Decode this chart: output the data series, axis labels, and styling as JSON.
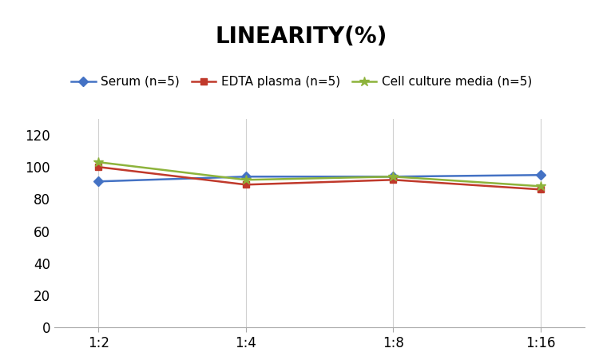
{
  "title": "LINEARITY(%)",
  "title_fontsize": 20,
  "title_fontweight": "bold",
  "x_labels": [
    "1:2",
    "1:4",
    "1:8",
    "1:16"
  ],
  "x_positions": [
    0,
    1,
    2,
    3
  ],
  "series": [
    {
      "label": "Serum (n=5)",
      "values": [
        91,
        94,
        94,
        95
      ],
      "color": "#4472C4",
      "marker": "D",
      "markersize": 6,
      "linewidth": 1.8
    },
    {
      "label": "EDTA plasma (n=5)",
      "values": [
        100,
        89,
        92,
        86
      ],
      "color": "#C0392B",
      "marker": "s",
      "markersize": 6,
      "linewidth": 1.8
    },
    {
      "label": "Cell culture media (n=5)",
      "values": [
        103,
        92,
        94,
        88
      ],
      "color": "#8DB33B",
      "marker": "*",
      "markersize": 9,
      "linewidth": 1.8
    }
  ],
  "ylim": [
    0,
    130
  ],
  "yticks": [
    0,
    20,
    40,
    60,
    80,
    100,
    120
  ],
  "background_color": "#ffffff",
  "grid_color": "#d0d0d0",
  "legend_fontsize": 11,
  "tick_fontsize": 12
}
